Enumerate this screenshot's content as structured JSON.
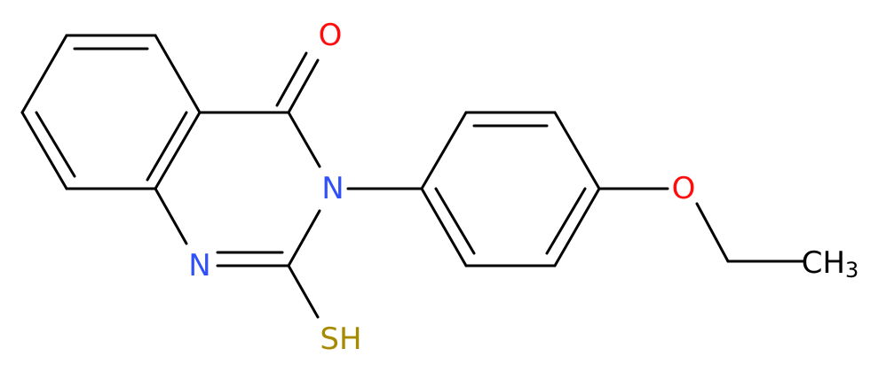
{
  "atoms": [
    {
      "label": "O"
    },
    {
      "label": "N"
    },
    {
      "label": "N"
    },
    {
      "label": "SH"
    },
    {
      "label": "O"
    },
    {
      "label": "CH",
      "subscript": "3"
    }
  ]
}
